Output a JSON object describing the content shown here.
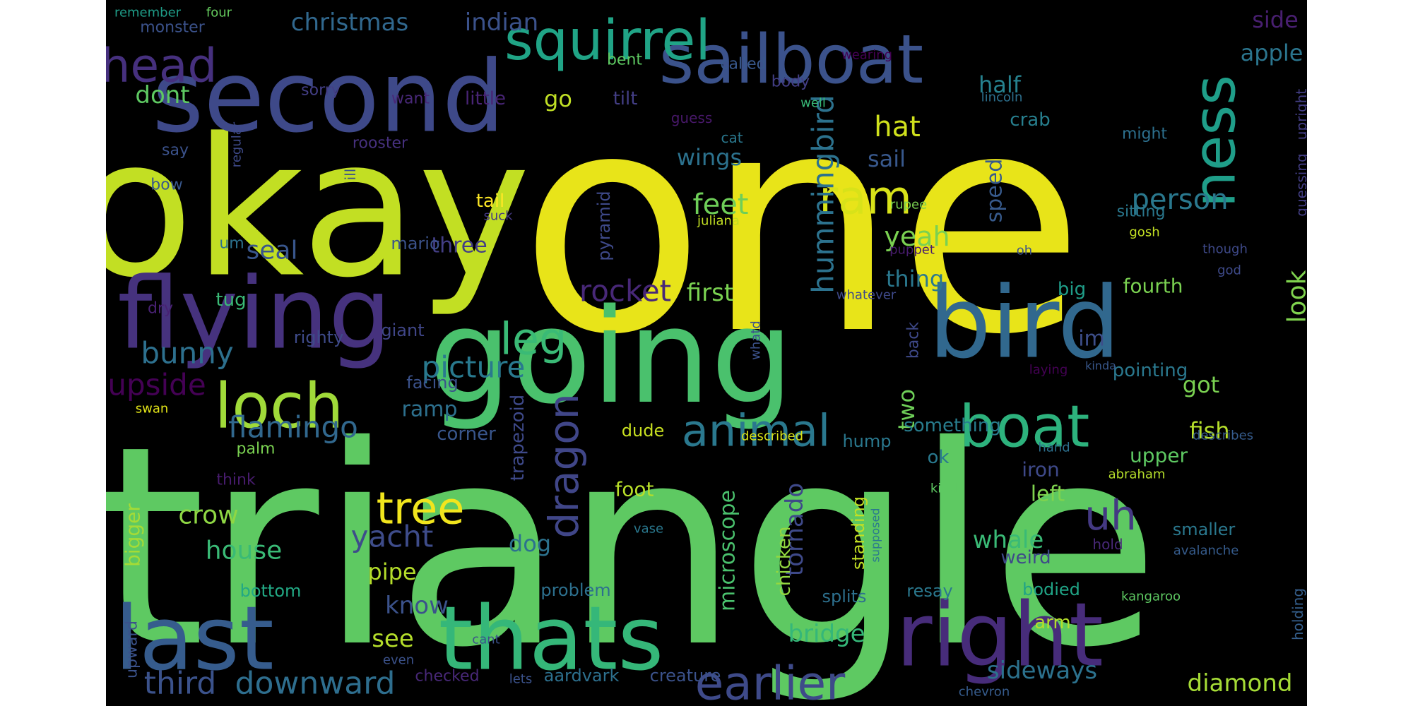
{
  "cloud": {
    "background": "#000000",
    "palette": {
      "viridis_0": "#440154",
      "viridis_1": "#46327e",
      "viridis_2": "#365c8d",
      "viridis_3": "#277f8e",
      "viridis_4": "#1fa187",
      "viridis_5": "#4ac16d",
      "viridis_6": "#a0da39",
      "viridis_7": "#fde725"
    },
    "words": [
      {
        "text": "one",
        "color": "#e8e419",
        "weight": 1.0
      },
      {
        "text": "triangle",
        "color": "#5ec962",
        "weight": 0.95
      },
      {
        "text": "okay",
        "color": "#c2df23",
        "weight": 0.75
      },
      {
        "text": "going",
        "color": "#4ac16d",
        "weight": 0.55
      },
      {
        "text": "second",
        "color": "#3e4989",
        "weight": 0.45
      },
      {
        "text": "flying",
        "color": "#46327e",
        "weight": 0.45
      },
      {
        "text": "bird",
        "color": "#31688e",
        "weight": 0.42
      },
      {
        "text": "thats",
        "color": "#35b779",
        "weight": 0.42
      },
      {
        "text": "right",
        "color": "#472c7a",
        "weight": 0.4
      },
      {
        "text": "last",
        "color": "#365c8d",
        "weight": 0.38
      },
      {
        "text": "sailboat",
        "color": "#3b528b",
        "weight": 0.35
      },
      {
        "text": "squirrel",
        "color": "#20a486",
        "weight": 0.3
      },
      {
        "text": "loch",
        "color": "#a0da39",
        "weight": 0.3
      },
      {
        "text": "boat",
        "color": "#2db27d",
        "weight": 0.28
      },
      {
        "text": "ness",
        "color": "#1f9e89",
        "weight": 0.28
      },
      {
        "text": "earlier",
        "color": "#3e4a89",
        "weight": 0.25
      },
      {
        "text": "ram",
        "color": "#d8e219",
        "weight": 0.25
      },
      {
        "text": "head",
        "color": "#46307e",
        "weight": 0.22
      },
      {
        "text": "animal",
        "color": "#2a788e",
        "weight": 0.22
      },
      {
        "text": "tree",
        "color": "#f1e51d",
        "weight": 0.22
      },
      {
        "text": "leg",
        "color": "#3aba76",
        "weight": 0.22
      },
      {
        "text": "dragon",
        "color": "#404688",
        "weight": 0.2
      },
      {
        "text": "uh",
        "color": "#443983",
        "weight": 0.2
      },
      {
        "text": "hummingbird",
        "color": "#2c728e",
        "weight": 0.18
      },
      {
        "text": "downward",
        "color": "#2e6e8e",
        "weight": 0.17
      },
      {
        "text": "third",
        "color": "#3b528b",
        "weight": 0.17
      },
      {
        "text": "yacht",
        "color": "#3e4c8a",
        "weight": 0.16
      },
      {
        "text": "flamingo",
        "color": "#31688e",
        "weight": 0.16
      },
      {
        "text": "rocket",
        "color": "#482878",
        "weight": 0.15
      },
      {
        "text": "picture",
        "color": "#29798e",
        "weight": 0.15
      },
      {
        "text": "bunny",
        "color": "#2d708e",
        "weight": 0.15
      },
      {
        "text": "upside",
        "color": "#440154",
        "weight": 0.15
      },
      {
        "text": "hat",
        "color": "#d0e11c",
        "weight": 0.15
      },
      {
        "text": "feet",
        "color": "#6ece58",
        "weight": 0.15
      },
      {
        "text": "person",
        "color": "#2a788e",
        "weight": 0.14
      },
      {
        "text": "yeah",
        "color": "#7ad151",
        "weight": 0.14
      },
      {
        "text": "christmas",
        "color": "#31688e",
        "weight": 0.13
      },
      {
        "text": "indian",
        "color": "#3b528b",
        "weight": 0.13
      },
      {
        "text": "house",
        "color": "#3aba76",
        "weight": 0.13
      },
      {
        "text": "crow",
        "color": "#8fd744",
        "weight": 0.13
      },
      {
        "text": "tornado",
        "color": "#3e4989",
        "weight": 0.13
      },
      {
        "text": "look",
        "color": "#7fd34e",
        "weight": 0.13
      },
      {
        "text": "seal",
        "color": "#39568c",
        "weight": 0.13
      },
      {
        "text": "dont",
        "color": "#5ec962",
        "weight": 0.12
      },
      {
        "text": "bridge",
        "color": "#35b779",
        "weight": 0.12
      },
      {
        "text": "whale",
        "color": "#3aba76",
        "weight": 0.12
      },
      {
        "text": "diamond",
        "color": "#a5db36",
        "weight": 0.12
      },
      {
        "text": "sideways",
        "color": "#2c728e",
        "weight": 0.12
      },
      {
        "text": "know",
        "color": "#3b528b",
        "weight": 0.12
      },
      {
        "text": "see",
        "color": "#b5de2b",
        "weight": 0.12
      },
      {
        "text": "first",
        "color": "#7ad151",
        "weight": 0.12
      },
      {
        "text": "half",
        "color": "#26818e",
        "weight": 0.11
      },
      {
        "text": "wings",
        "color": "#2c728e",
        "weight": 0.11
      },
      {
        "text": "sail",
        "color": "#38588c",
        "weight": 0.11
      },
      {
        "text": "thing",
        "color": "#2a788e",
        "weight": 0.11
      },
      {
        "text": "two",
        "color": "#6ece58",
        "weight": 0.11
      },
      {
        "text": "got",
        "color": "#7ad151",
        "weight": 0.11
      },
      {
        "text": "fish",
        "color": "#b5de2b",
        "weight": 0.11
      },
      {
        "text": "speed",
        "color": "#375a8c",
        "weight": 0.1
      },
      {
        "text": "microscope",
        "color": "#4ac16d",
        "weight": 0.1
      },
      {
        "text": "pipe",
        "color": "#b5de2b",
        "weight": 0.1
      },
      {
        "text": "dog",
        "color": "#2c728e",
        "weight": 0.1
      },
      {
        "text": "ramp",
        "color": "#2d708e",
        "weight": 0.1
      },
      {
        "text": "three",
        "color": "#433e85",
        "weight": 0.1
      },
      {
        "text": "left",
        "color": "#7fd34e",
        "weight": 0.1
      },
      {
        "text": "go",
        "color": "#c0df25",
        "weight": 0.1
      },
      {
        "text": "side",
        "color": "#481f70",
        "weight": 0.1
      },
      {
        "text": "apple",
        "color": "#2b758e",
        "weight": 0.1
      },
      {
        "text": "im",
        "color": "#3d4e8a",
        "weight": 0.1
      },
      {
        "text": "bigger",
        "color": "#a5db36",
        "weight": 0.09
      },
      {
        "text": "chicken",
        "color": "#94d840",
        "weight": 0.09
      },
      {
        "text": "foot",
        "color": "#b8de29",
        "weight": 0.09
      },
      {
        "text": "upper",
        "color": "#5ec962",
        "weight": 0.09
      },
      {
        "text": "iron",
        "color": "#3e4989",
        "weight": 0.09
      },
      {
        "text": "corner",
        "color": "#39568c",
        "weight": 0.09
      },
      {
        "text": "smaller",
        "color": "#2a788e",
        "weight": 0.09
      },
      {
        "text": "fourth",
        "color": "#7ad151",
        "weight": 0.09
      },
      {
        "text": "pointing",
        "color": "#2a788e",
        "weight": 0.09
      },
      {
        "text": "weird",
        "color": "#3e4a89",
        "weight": 0.08
      },
      {
        "text": "trapezoid",
        "color": "#3e4989",
        "weight": 0.08
      },
      {
        "text": "giant",
        "color": "#404688",
        "weight": 0.08
      },
      {
        "text": "big",
        "color": "#1f9e89",
        "weight": 0.08
      },
      {
        "text": "crab",
        "color": "#277f8e",
        "weight": 0.08
      },
      {
        "text": "tail",
        "color": "#fde725",
        "weight": 0.08
      },
      {
        "text": "mario",
        "color": "#3b528b",
        "weight": 0.08
      },
      {
        "text": "pyramid",
        "color": "#3e4989",
        "weight": 0.08
      },
      {
        "text": "facing",
        "color": "#3b528b",
        "weight": 0.08
      },
      {
        "text": "righty",
        "color": "#3e4a89",
        "weight": 0.08
      },
      {
        "text": "tug",
        "color": "#3aba76",
        "weight": 0.08
      },
      {
        "text": "tilt",
        "color": "#433e85",
        "weight": 0.08
      },
      {
        "text": "little",
        "color": "#482475",
        "weight": 0.08
      },
      {
        "text": "standing",
        "color": "#c2df23",
        "weight": 0.08
      },
      {
        "text": "something",
        "color": "#287d8e",
        "weight": 0.08
      },
      {
        "text": "ok",
        "color": "#29798e",
        "weight": 0.08
      },
      {
        "text": "bodied",
        "color": "#20a486",
        "weight": 0.08
      },
      {
        "text": "arm",
        "color": "#b5de2b",
        "weight": 0.08
      },
      {
        "text": "problem",
        "color": "#2d708e",
        "weight": 0.08
      },
      {
        "text": "bottom",
        "color": "#22a884",
        "weight": 0.08
      },
      {
        "text": "resay",
        "color": "#2a788e",
        "weight": 0.08
      },
      {
        "text": "splits",
        "color": "#2d708e",
        "weight": 0.08
      },
      {
        "text": "hump",
        "color": "#2a788e",
        "weight": 0.08
      },
      {
        "text": "dude",
        "color": "#c8e020",
        "weight": 0.08
      },
      {
        "text": "palm",
        "color": "#7ad151",
        "weight": 0.07
      },
      {
        "text": "aardvark",
        "color": "#2d708e",
        "weight": 0.07
      },
      {
        "text": "creature",
        "color": "#3b528b",
        "weight": 0.07
      },
      {
        "text": "checked",
        "color": "#482878",
        "weight": 0.07
      },
      {
        "text": "upward",
        "color": "#3b528b",
        "weight": 0.07
      },
      {
        "text": "sitting",
        "color": "#2a788e",
        "weight": 0.07
      },
      {
        "text": "guessing",
        "color": "#433e85",
        "weight": 0.07
      },
      {
        "text": "upright",
        "color": "#433e85",
        "weight": 0.07
      },
      {
        "text": "holding",
        "color": "#355f8d",
        "weight": 0.07
      },
      {
        "text": "might",
        "color": "#2d708e",
        "weight": 0.07
      },
      {
        "text": "back",
        "color": "#3e4989",
        "weight": 0.07
      },
      {
        "text": "say",
        "color": "#3b528b",
        "weight": 0.07
      },
      {
        "text": "bow",
        "color": "#38588c",
        "weight": 0.07
      },
      {
        "text": "um",
        "color": "#2c728e",
        "weight": 0.07
      },
      {
        "text": "dry",
        "color": "#482173",
        "weight": 0.07
      },
      {
        "text": "think",
        "color": "#481c6e",
        "weight": 0.07
      },
      {
        "text": "rooster",
        "color": "#46307e",
        "weight": 0.07
      },
      {
        "text": "body",
        "color": "#433e85",
        "weight": 0.07
      },
      {
        "text": "called",
        "color": "#38588c",
        "weight": 0.07
      },
      {
        "text": "sorry",
        "color": "#433e85",
        "weight": 0.07
      },
      {
        "text": "want",
        "color": "#482878",
        "weight": 0.07
      },
      {
        "text": "bent",
        "color": "#5ec962",
        "weight": 0.07
      },
      {
        "text": "monster",
        "color": "#3b528b",
        "weight": 0.07
      },
      {
        "text": "remember",
        "color": "#1f9e89",
        "weight": 0.06
      },
      {
        "text": "four",
        "color": "#65cb5e",
        "weight": 0.06
      },
      {
        "text": "ill",
        "color": "#3b528b",
        "weight": 0.06
      },
      {
        "text": "cat",
        "color": "#2a788e",
        "weight": 0.06
      },
      {
        "text": "guess",
        "color": "#48186a",
        "weight": 0.06
      },
      {
        "text": "juliana",
        "color": "#c2df23",
        "weight": 0.06
      },
      {
        "text": "suck",
        "color": "#443983",
        "weight": 0.06
      },
      {
        "text": "well",
        "color": "#38b977",
        "weight": 0.06
      },
      {
        "text": "wearing",
        "color": "#440154",
        "weight": 0.06
      },
      {
        "text": "lincoln",
        "color": "#2d708e",
        "weight": 0.06
      },
      {
        "text": "rupee",
        "color": "#7ad151",
        "weight": 0.06
      },
      {
        "text": "puppet",
        "color": "#481c6e",
        "weight": 0.06
      },
      {
        "text": "whatever",
        "color": "#3e4989",
        "weight": 0.06
      },
      {
        "text": "whatd",
        "color": "#3b528b",
        "weight": 0.06
      },
      {
        "text": "gosh",
        "color": "#c2df23",
        "weight": 0.06
      },
      {
        "text": "oh",
        "color": "#3b528b",
        "weight": 0.06
      },
      {
        "text": "though",
        "color": "#3e4989",
        "weight": 0.06
      },
      {
        "text": "god",
        "color": "#3e4a89",
        "weight": 0.06
      },
      {
        "text": "laying",
        "color": "#440154",
        "weight": 0.06
      },
      {
        "text": "kinda",
        "color": "#38588c",
        "weight": 0.06
      },
      {
        "text": "hand",
        "color": "#2d708e",
        "weight": 0.06
      },
      {
        "text": "describes",
        "color": "#365c8d",
        "weight": 0.06
      },
      {
        "text": "abraham",
        "color": "#b5de2b",
        "weight": 0.06
      },
      {
        "text": "described",
        "color": "#d8e219",
        "weight": 0.06
      },
      {
        "text": "kind",
        "color": "#5ec962",
        "weight": 0.06
      },
      {
        "text": "supposed",
        "color": "#2a788e",
        "weight": 0.06
      },
      {
        "text": "vase",
        "color": "#2a788e",
        "weight": 0.06
      },
      {
        "text": "swan",
        "color": "#e2e418",
        "weight": 0.06
      },
      {
        "text": "hold",
        "color": "#482878",
        "weight": 0.06
      },
      {
        "text": "avalanche",
        "color": "#365c8d",
        "weight": 0.06
      },
      {
        "text": "kangaroo",
        "color": "#5ec962",
        "weight": 0.06
      },
      {
        "text": "cant",
        "color": "#3b528b",
        "weight": 0.06
      },
      {
        "text": "even",
        "color": "#3b528b",
        "weight": 0.06
      },
      {
        "text": "lets",
        "color": "#3b528b",
        "weight": 0.06
      },
      {
        "text": "chevron",
        "color": "#365c8d",
        "weight": 0.06
      },
      {
        "text": "regular",
        "color": "#3e4a89",
        "weight": 0.06
      }
    ]
  }
}
